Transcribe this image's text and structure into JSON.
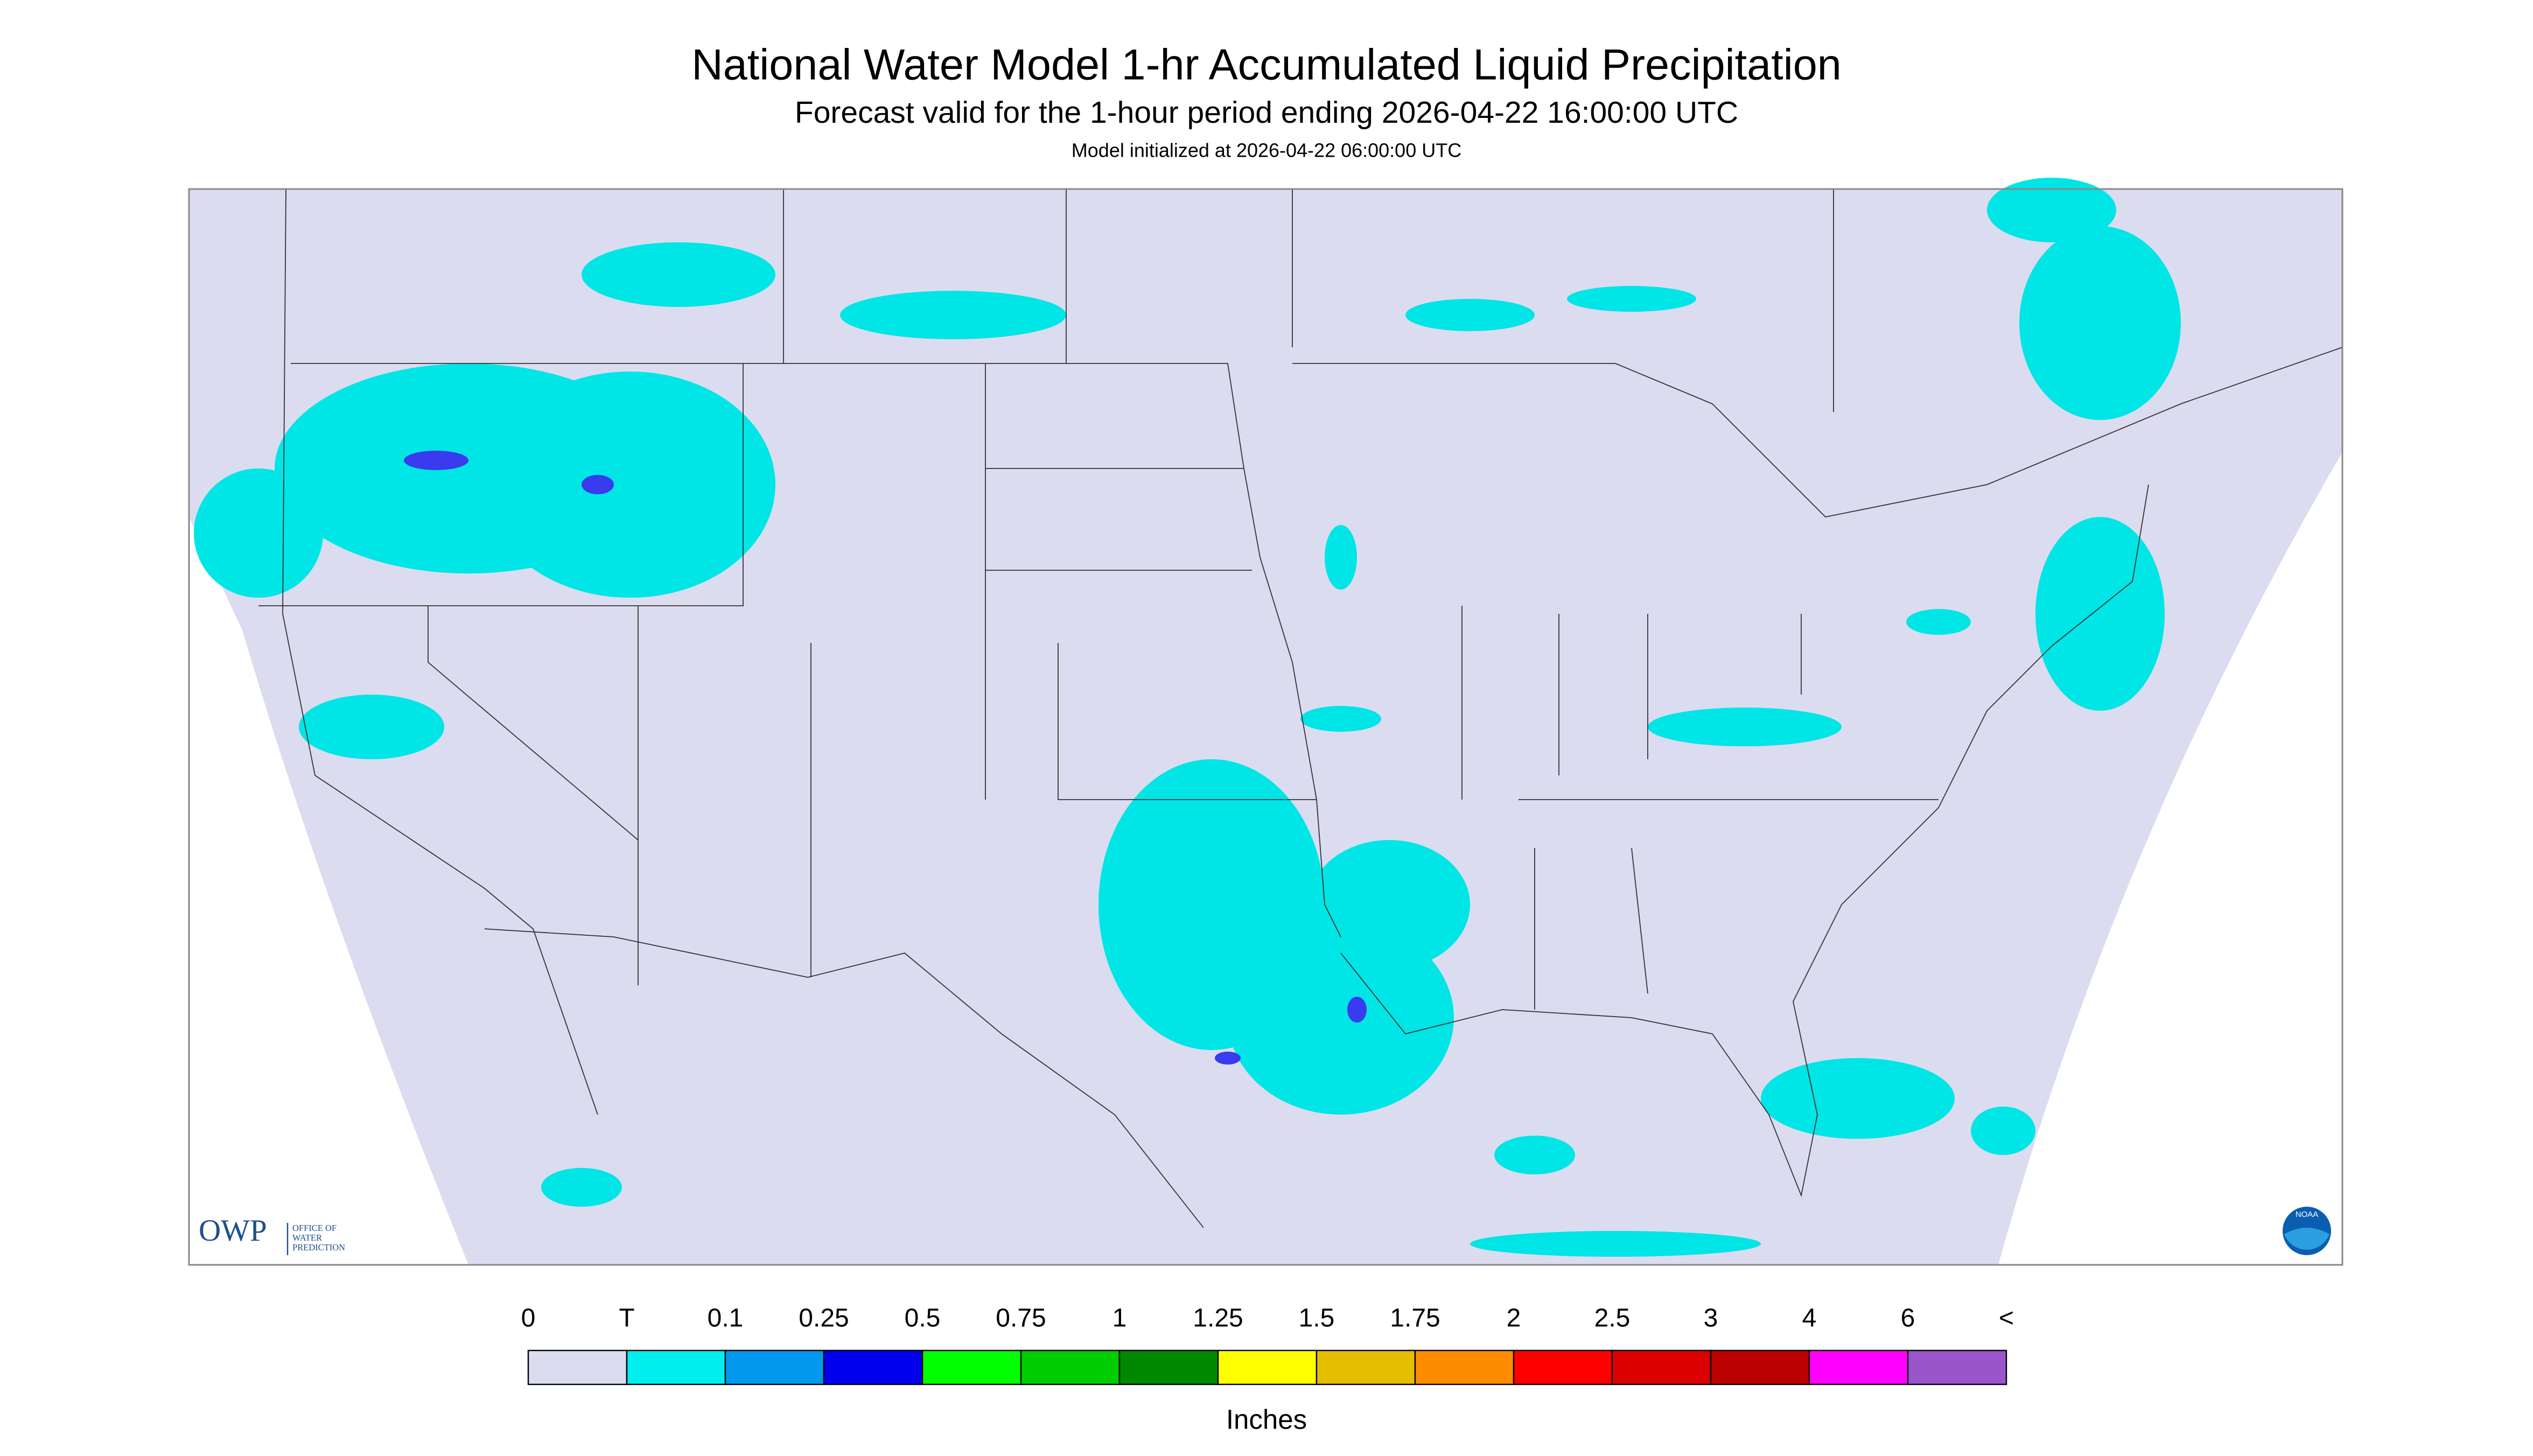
{
  "header": {
    "title": "National Water Model 1-hr Accumulated Liquid Precipitation",
    "subtitle": "Forecast valid for the 1-hour period ending 2026-04-22 16:00:00 UTC",
    "init": "Model initialized at 2026-04-22 06:00:00 UTC"
  },
  "legend": {
    "labels": [
      "0",
      "T",
      "0.1",
      "0.25",
      "0.5",
      "0.75",
      "1",
      "1.25",
      "1.5",
      "1.75",
      "2",
      "2.5",
      "3",
      "4",
      "6",
      "<"
    ],
    "colors": [
      "#dcdcf0",
      "#00eeee",
      "#0099ee",
      "#0000ee",
      "#00ff00",
      "#00cc00",
      "#008800",
      "#ffff00",
      "#e6be00",
      "#ff8c00",
      "#ff0000",
      "#dd0000",
      "#bb0000",
      "#ff00ff",
      "#9955cc"
    ],
    "unit": "Inches"
  },
  "logos": {
    "owp": "OWP",
    "owp_lines": [
      "OFFICE OF",
      "WATER",
      "PREDICTION"
    ],
    "noaa": "NOAA"
  }
}
